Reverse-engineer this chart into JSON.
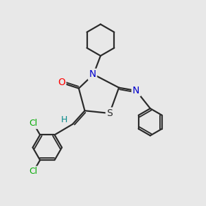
{
  "background_color": "#e8e8e8",
  "bond_color": "#2a2a2a",
  "atom_colors": {
    "O": "#ff0000",
    "N": "#0000cc",
    "S": "#2a2a2a",
    "Cl": "#00aa00",
    "H": "#008888",
    "C": "#2a2a2a"
  },
  "bond_width": 1.6,
  "figsize": [
    3.0,
    3.0
  ],
  "dpi": 100
}
